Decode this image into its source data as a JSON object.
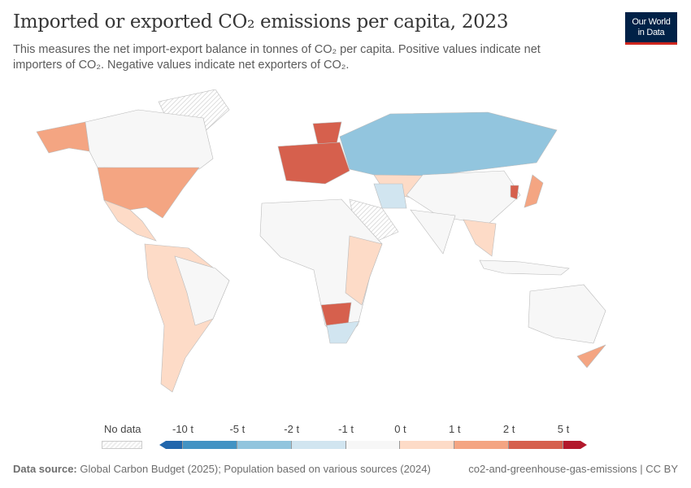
{
  "header": {
    "title": "Imported or exported CO₂ emissions per capita, 2023",
    "subtitle": "This measures the net import-export balance in tonnes of CO₂ per capita. Positive values indicate net importers of CO₂. Negative values indicate net exporters of CO₂.",
    "logo_line1": "Our World",
    "logo_line2": "in Data"
  },
  "legend": {
    "no_data_label": "No data",
    "ticks": [
      "-10 t",
      "-5 t",
      "-2 t",
      "-1 t",
      "0 t",
      "1 t",
      "2 t",
      "5 t"
    ],
    "bins": [
      "#2166ac",
      "#4393c3",
      "#92c5de",
      "#d1e5f0",
      "#f7f7f7",
      "#fddbc7",
      "#f4a582",
      "#d6604d",
      "#b2182b"
    ]
  },
  "footer": {
    "source_label": "Data source:",
    "source_text": "Global Carbon Budget (2025); Population based on various sources (2024)",
    "slug": "co2-and-greenhouse-gas-emissions | CC BY"
  }
}
